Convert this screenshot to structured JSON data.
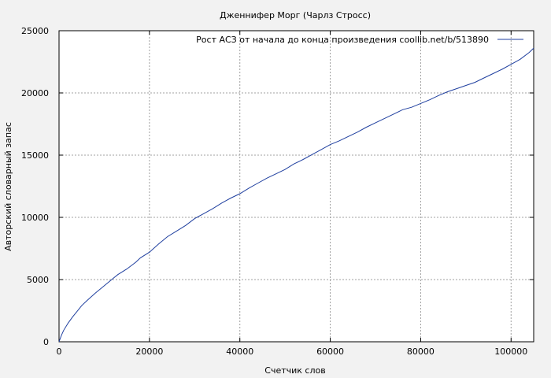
{
  "chart_data": {
    "type": "line",
    "title": "Дженнифер Морг (Чарлз Стросс)",
    "xlabel": "Счетчик слов",
    "ylabel": "Авторский словарный запас",
    "xlim": [
      0,
      105000
    ],
    "ylim": [
      0,
      25000
    ],
    "x_ticks": [
      0,
      20000,
      40000,
      60000,
      80000,
      100000
    ],
    "y_ticks": [
      0,
      5000,
      10000,
      15000,
      20000,
      25000
    ],
    "x_tick_labels": [
      "0",
      "20000",
      "40000",
      "60000",
      "80000",
      "100000"
    ],
    "y_tick_labels": [
      "0",
      "5000",
      "10000",
      "15000",
      "20000",
      "25000"
    ],
    "grid": true,
    "legend_position": "top-right",
    "series": [
      {
        "name": "Рост АСЗ от начала до конца произведения  coollib.net/b/513890",
        "color": "#1f3f9f",
        "x": [
          0,
          500,
          1000,
          2000,
          3000,
          4000,
          5000,
          6000,
          8000,
          10000,
          12000,
          13000,
          15000,
          17000,
          18000,
          20000,
          22000,
          24000,
          26000,
          28000,
          30000,
          32000,
          34000,
          36000,
          38000,
          40000,
          42000,
          44000,
          46000,
          48000,
          50000,
          52000,
          54000,
          56000,
          58000,
          60000,
          62000,
          64000,
          66000,
          68000,
          70000,
          72000,
          74000,
          76000,
          78000,
          80000,
          82000,
          84000,
          86000,
          88000,
          90000,
          92000,
          94000,
          96000,
          98000,
          100000,
          102000,
          104000,
          105000
        ],
        "y": [
          0,
          500,
          900,
          1500,
          2000,
          2450,
          2900,
          3250,
          3900,
          4500,
          5100,
          5400,
          5850,
          6400,
          6750,
          7200,
          7850,
          8450,
          8900,
          9350,
          9900,
          10300,
          10700,
          11150,
          11550,
          11900,
          12350,
          12750,
          13150,
          13500,
          13850,
          14300,
          14650,
          15050,
          15450,
          15850,
          16150,
          16500,
          16850,
          17250,
          17600,
          17950,
          18300,
          18650,
          18850,
          19150,
          19450,
          19800,
          20100,
          20350,
          20600,
          20850,
          21200,
          21550,
          21900,
          22300,
          22700,
          23250,
          23600
        ]
      }
    ]
  }
}
